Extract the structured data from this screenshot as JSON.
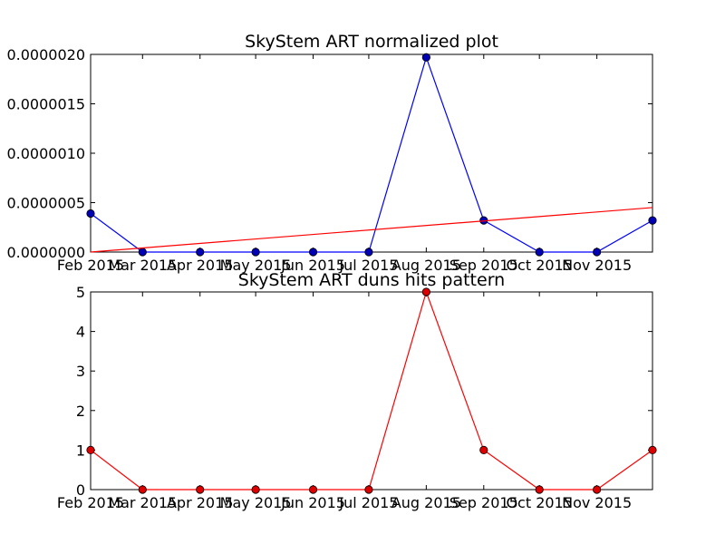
{
  "chart_data": [
    {
      "type": "line",
      "title": "SkyStem ART normalized plot",
      "xlabel": "",
      "ylabel": "",
      "x": [
        "2015-02-01",
        "2015-03-01",
        "2015-04-01",
        "2015-05-01",
        "2015-06-01",
        "2015-07-01",
        "2015-08-01",
        "2015-09-01",
        "2015-10-01",
        "2015-11-01",
        "2015-12-01"
      ],
      "xlim": [
        "2015-02-01",
        "2015-12-01"
      ],
      "xticks": [
        "2015-02-01",
        "2015-03-01",
        "2015-04-01",
        "2015-05-01",
        "2015-06-01",
        "2015-07-01",
        "2015-08-01",
        "2015-09-01",
        "2015-10-01",
        "2015-11-01"
      ],
      "xtick_labels": [
        "Feb 2015",
        "Mar 2015",
        "Apr 2015",
        "May 2015",
        "Jun 2015",
        "Jul 2015",
        "Aug 2015",
        "Sep 2015",
        "Oct 2015",
        "Nov 2015"
      ],
      "ylim": [
        0,
        2e-06
      ],
      "yticks": [
        0,
        5e-07,
        1e-06,
        1.5e-06,
        2e-06
      ],
      "ytick_labels": [
        "0.0000000",
        "0.0000005",
        "0.0000010",
        "0.0000015",
        "0.0000020"
      ],
      "grid": false,
      "series": [
        {
          "color": "#0000ff",
          "marker": "circle",
          "marker_color": "#0000b4",
          "values": [
            3.9e-07,
            0,
            0,
            0,
            0,
            0,
            1.97e-06,
            3.2e-07,
            0,
            0,
            3.2e-07
          ]
        },
        {
          "color": "#ff0000",
          "marker": "none",
          "x": [
            "2015-02-01",
            "2015-12-01"
          ],
          "values": [
            0,
            4.5e-07
          ]
        }
      ]
    },
    {
      "type": "line",
      "title": "SkyStem ART duns hits pattern",
      "xlabel": "",
      "ylabel": "",
      "x": [
        "2015-02-01",
        "2015-03-01",
        "2015-04-01",
        "2015-05-01",
        "2015-06-01",
        "2015-07-01",
        "2015-08-01",
        "2015-09-01",
        "2015-10-01",
        "2015-11-01",
        "2015-12-01"
      ],
      "xlim": [
        "2015-02-01",
        "2015-12-01"
      ],
      "xticks": [
        "2015-02-01",
        "2015-03-01",
        "2015-04-01",
        "2015-05-01",
        "2015-06-01",
        "2015-07-01",
        "2015-08-01",
        "2015-09-01",
        "2015-10-01",
        "2015-11-01"
      ],
      "xtick_labels": [
        "Feb 2015",
        "Mar 2015",
        "Apr 2015",
        "May 2015",
        "Jun 2015",
        "Jul 2015",
        "Aug 2015",
        "Sep 2015",
        "Oct 2015",
        "Nov 2015"
      ],
      "ylim": [
        0,
        5
      ],
      "yticks": [
        0,
        1,
        2,
        3,
        4,
        5
      ],
      "ytick_labels": [
        "0",
        "1",
        "2",
        "3",
        "4",
        "5"
      ],
      "grid": false,
      "series": [
        {
          "color": "#ff0000",
          "marker": "circle",
          "marker_color": "#dc0000",
          "values": [
            1,
            0,
            0,
            0,
            0,
            0,
            5,
            1,
            0,
            0,
            1
          ]
        }
      ]
    }
  ]
}
